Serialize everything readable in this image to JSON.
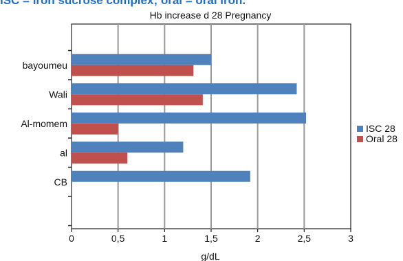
{
  "header": {
    "banner_text": "ISC = iron sucrose complex; oral = oral iron."
  },
  "chart_data": {
    "type": "bar",
    "orientation": "horizontal",
    "title": "Hb increase d 28 Pregnancy",
    "xlabel": "g/dL",
    "ylabel": "",
    "xlim": [
      0,
      3
    ],
    "x_ticks": [
      0,
      0.5,
      1,
      1.5,
      2,
      2.5,
      3
    ],
    "x_tick_labels": [
      "0",
      "0,5",
      "1",
      "1,5",
      "2",
      "2,5",
      "3"
    ],
    "categories": [
      "bayoumeu",
      "Wali",
      "Al-momem",
      "al",
      "CB"
    ],
    "series": [
      {
        "name": "ISC 28",
        "color": "#4f81bd",
        "values": [
          1.5,
          2.42,
          2.52,
          1.2,
          1.92
        ]
      },
      {
        "name": "Oral 28",
        "color": "#c0504d",
        "values": [
          1.31,
          1.41,
          0.5,
          0.6,
          null
        ]
      }
    ],
    "grid": {
      "vertical": true,
      "color": "#999999"
    },
    "legend": {
      "position": "right"
    }
  }
}
